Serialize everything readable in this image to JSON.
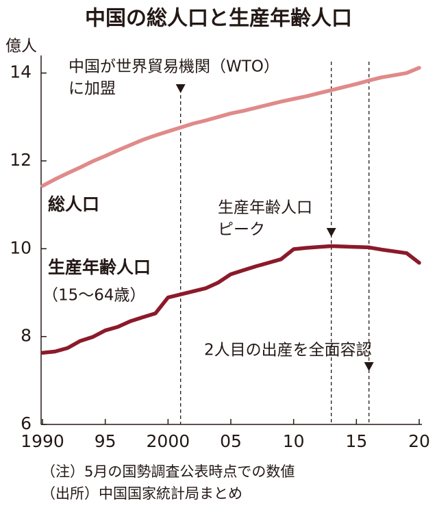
{
  "chart_data": {
    "type": "line",
    "title": "中国の総人口と生産年齢人口",
    "y_unit": "億人",
    "x": [
      1990,
      1991,
      1992,
      1993,
      1994,
      1995,
      1996,
      1997,
      1998,
      1999,
      2000,
      2001,
      2002,
      2003,
      2004,
      2005,
      2006,
      2007,
      2008,
      2009,
      2010,
      2011,
      2012,
      2013,
      2014,
      2015,
      2016,
      2017,
      2018,
      2019,
      2020
    ],
    "series": [
      {
        "name": "総人口",
        "color": "#e08a8a",
        "values": [
          11.43,
          11.58,
          11.72,
          11.85,
          11.99,
          12.11,
          12.24,
          12.36,
          12.48,
          12.58,
          12.67,
          12.76,
          12.85,
          12.92,
          13.0,
          13.08,
          13.14,
          13.21,
          13.28,
          13.35,
          13.41,
          13.47,
          13.54,
          13.61,
          13.68,
          13.75,
          13.83,
          13.9,
          13.95,
          14.0,
          14.12
        ]
      },
      {
        "name": "生産年齢人口",
        "note": "（15〜64歳）",
        "color": "#8b1a2a",
        "values": [
          7.63,
          7.66,
          7.74,
          7.9,
          7.99,
          8.14,
          8.22,
          8.35,
          8.44,
          8.53,
          8.89,
          8.96,
          9.03,
          9.1,
          9.23,
          9.42,
          9.51,
          9.6,
          9.68,
          9.76,
          9.99,
          10.02,
          10.04,
          10.06,
          10.05,
          10.04,
          10.03,
          9.98,
          9.94,
          9.9,
          9.68
        ]
      }
    ],
    "xlim": [
      1990,
      2020
    ],
    "xticks": [
      1990,
      {
        "value": 1995,
        "label": "95"
      },
      2000,
      {
        "value": 2005,
        "label": "05"
      },
      {
        "value": 2010,
        "label": "10"
      },
      {
        "value": 2015,
        "label": "15"
      },
      {
        "value": 2020,
        "label": "20"
      }
    ],
    "ylim": [
      6,
      14.4
    ],
    "yticks": [
      6,
      8,
      10,
      12,
      14
    ],
    "annotations": [
      {
        "x": 2001,
        "lines": [
          "中国が世界貿易機関（WTO）",
          "に加盟"
        ]
      },
      {
        "x": 2013,
        "lines": [
          "生産年齢人口",
          "ピーク"
        ]
      },
      {
        "x": 2016,
        "lines": [
          "2人目の出産を全面容認"
        ]
      }
    ],
    "notes": [
      "（注）5月の国勢調査公表時点での数値",
      "（出所）中国国家統計局まとめ"
    ]
  }
}
